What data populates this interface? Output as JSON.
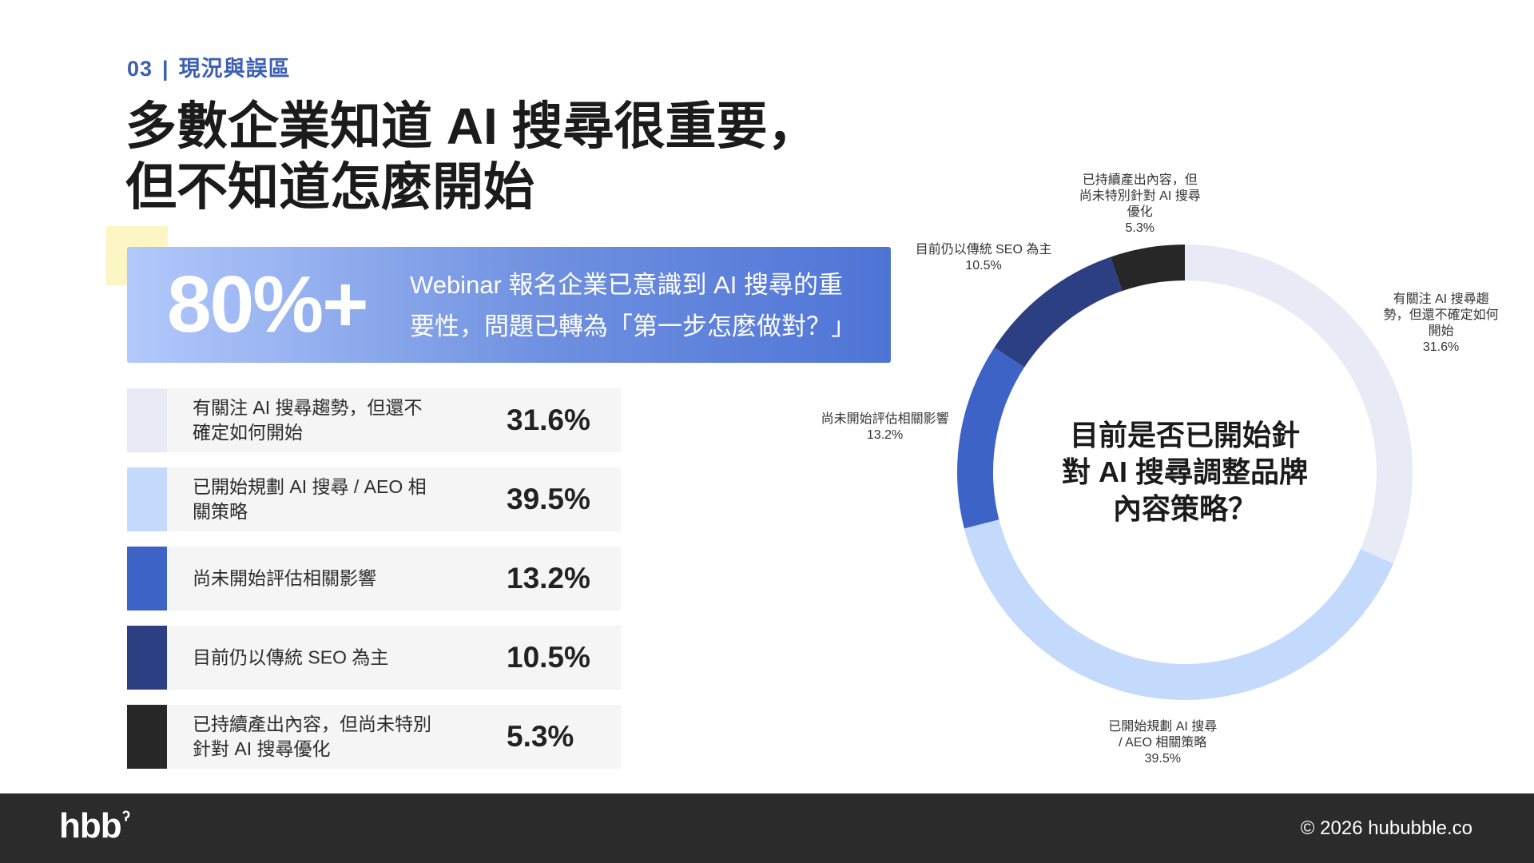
{
  "section": {
    "number": "03",
    "separator": "|",
    "title": "現況與誤區"
  },
  "headline": {
    "line1": "多數企業知道 AI 搜尋很重要，",
    "line2": "但不知道怎麼開始"
  },
  "highlight": {
    "stat": "80%+",
    "line1": "Webinar 報名企業已意識到 AI 搜尋的重",
    "line2": "要性，問題已轉為「第一步怎麼做對？」"
  },
  "legend": [
    {
      "label": "有關注 AI 搜尋趨勢，但還不確定如何開始",
      "value": "31.6%",
      "color": "#e8eaf6"
    },
    {
      "label": "已開始規劃 AI 搜尋 / AEO 相關策略",
      "value": "39.5%",
      "color": "#c3dafd"
    },
    {
      "label": "尚未開始評估相關影響",
      "value": "13.2%",
      "color": "#3d63c7"
    },
    {
      "label": "目前仍以傳統 SEO 為主",
      "value": "10.5%",
      "color": "#2c3f82"
    },
    {
      "label": "已持續產出內容，但尚未特別針對 AI 搜尋優化",
      "value": "5.3%",
      "color": "#272727"
    }
  ],
  "chart_data": {
    "type": "pie",
    "donut": true,
    "center_title": "目前是否已開始針對 AI 搜尋調整品牌內容策略？",
    "center_lines": [
      "目前是否已開始針",
      "對 AI 搜尋調整品牌",
      "內容策略？"
    ],
    "slices": [
      {
        "label": "有關注 AI 搜尋趨勢，但還不確定如何開始",
        "chart_lines": [
          "有關注 AI 搜尋趨",
          "勢，但還不確定如何",
          "開始"
        ],
        "value": 31.6,
        "value_label": "31.6%",
        "color": "#e8eaf6"
      },
      {
        "label": "已開始規劃 AI 搜尋 / AEO 相關策略",
        "chart_lines": [
          "已開始規劃 AI 搜尋",
          "/ AEO 相關策略"
        ],
        "value": 39.5,
        "value_label": "39.5%",
        "color": "#c3dafd"
      },
      {
        "label": "尚未開始評估相關影響",
        "chart_lines": [
          "尚未開始評估相關影響"
        ],
        "value": 13.2,
        "value_label": "13.2%",
        "color": "#3d63c7"
      },
      {
        "label": "目前仍以傳統 SEO 為主",
        "chart_lines": [
          "目前仍以傳統 SEO 為主"
        ],
        "value": 10.5,
        "value_label": "10.5%",
        "color": "#2c3f82"
      },
      {
        "label": "已持續產出內容，但尚未特別針對 AI 搜尋優化",
        "chart_lines": [
          "已持續產出內容，但",
          "尚未特別針對 AI 搜尋",
          "優化"
        ],
        "value": 5.3,
        "value_label": "5.3%",
        "color": "#272727"
      }
    ],
    "start": "12 o'clock",
    "direction": "clockwise"
  },
  "footer": {
    "logo": "hbb",
    "logo_mark": "ˀ",
    "copyright": "© 2026 hububble.co"
  }
}
